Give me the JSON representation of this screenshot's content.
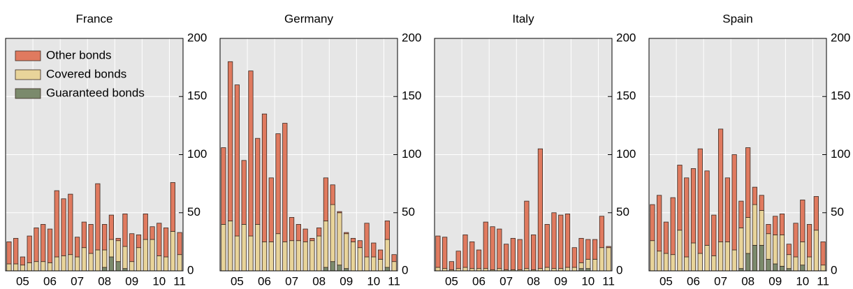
{
  "chart_data": [
    {
      "type": "bar",
      "stacked": true,
      "title": "France",
      "legend": "upper left",
      "categories": [
        null,
        null,
        "05",
        null,
        null,
        null,
        "06",
        null,
        null,
        null,
        "07",
        null,
        null,
        null,
        "08",
        null,
        null,
        null,
        "09",
        null,
        null,
        null,
        "10",
        null,
        null,
        "11"
      ],
      "series": [
        {
          "name": "Guaranteed bonds",
          "color": "#7b8a6c",
          "values": [
            0,
            0,
            0,
            0,
            0,
            0,
            0,
            0,
            0,
            0,
            0,
            0,
            0,
            0,
            3,
            12,
            8,
            2,
            0,
            0,
            0,
            0,
            0,
            0,
            0,
            0
          ]
        },
        {
          "name": "Covered bonds",
          "color": "#e8d49a",
          "values": [
            6,
            6,
            5,
            7,
            8,
            8,
            7,
            12,
            13,
            14,
            12,
            20,
            15,
            18,
            15,
            15,
            18,
            19,
            8,
            20,
            27,
            27,
            13,
            12,
            34,
            14
          ]
        },
        {
          "name": "Other bonds",
          "color": "#e07a5f",
          "values": [
            19,
            22,
            7,
            23,
            29,
            32,
            29,
            57,
            49,
            52,
            17,
            22,
            25,
            57,
            22,
            21,
            2,
            28,
            24,
            11,
            22,
            11,
            28,
            25,
            42,
            19
          ]
        }
      ],
      "ylim": [
        0,
        200
      ],
      "yticks": [
        0,
        50,
        100,
        150,
        200
      ],
      "grid": true
    },
    {
      "type": "bar",
      "stacked": true,
      "title": "Germany",
      "categories": [
        null,
        null,
        "05",
        null,
        null,
        null,
        "06",
        null,
        null,
        null,
        "07",
        null,
        null,
        null,
        "08",
        null,
        null,
        null,
        "09",
        null,
        null,
        null,
        "10",
        null,
        null,
        "11"
      ],
      "series": [
        {
          "color": "#7b8a6c",
          "values": [
            0,
            0,
            0,
            0,
            0,
            0,
            0,
            0,
            0,
            0,
            0,
            0,
            0,
            0,
            0,
            3,
            8,
            5,
            2,
            0,
            0,
            0,
            0,
            0,
            3,
            0
          ]
        },
        {
          "color": "#e8d49a",
          "values": [
            40,
            43,
            30,
            40,
            30,
            40,
            25,
            25,
            32,
            25,
            26,
            26,
            25,
            26,
            30,
            40,
            49,
            45,
            30,
            25,
            20,
            12,
            12,
            10,
            24,
            8
          ]
        },
        {
          "color": "#e07a5f",
          "values": [
            66,
            137,
            130,
            55,
            142,
            74,
            110,
            55,
            86,
            102,
            20,
            14,
            11,
            2,
            7,
            37,
            17,
            1,
            1,
            3,
            6,
            29,
            12,
            8,
            16,
            6
          ]
        }
      ],
      "ylim": [
        0,
        200
      ],
      "yticks": [
        0,
        50,
        100,
        150,
        200
      ],
      "grid": true
    },
    {
      "type": "bar",
      "stacked": true,
      "title": "Italy",
      "categories": [
        null,
        null,
        "05",
        null,
        null,
        null,
        "06",
        null,
        null,
        null,
        "07",
        null,
        null,
        null,
        "08",
        null,
        null,
        null,
        "09",
        null,
        null,
        null,
        "10",
        null,
        null,
        "11"
      ],
      "series": [
        {
          "color": "#7b8a6c",
          "values": [
            0,
            0,
            0,
            0,
            0,
            0,
            0,
            0,
            0,
            0,
            0,
            0,
            0,
            0,
            0,
            0,
            0,
            0,
            0,
            0,
            0,
            2,
            2,
            0,
            0,
            0
          ]
        },
        {
          "color": "#e8d49a",
          "values": [
            3,
            2,
            1,
            2,
            3,
            2,
            2,
            2,
            1,
            2,
            1,
            1,
            1,
            2,
            1,
            2,
            3,
            2,
            2,
            3,
            3,
            5,
            8,
            10,
            20,
            20
          ]
        },
        {
          "color": "#e07a5f",
          "values": [
            27,
            27,
            7,
            15,
            28,
            23,
            16,
            40,
            37,
            34,
            22,
            27,
            26,
            58,
            30,
            103,
            37,
            48,
            46,
            46,
            17,
            21,
            17,
            17,
            27,
            1
          ]
        }
      ],
      "ylim": [
        0,
        200
      ],
      "yticks": [
        0,
        50,
        100,
        150,
        200
      ],
      "grid": true
    },
    {
      "type": "bar",
      "stacked": true,
      "title": "Spain",
      "categories": [
        null,
        null,
        "05",
        null,
        null,
        null,
        "06",
        null,
        null,
        null,
        "07",
        null,
        null,
        null,
        "08",
        null,
        null,
        null,
        "09",
        null,
        null,
        null,
        "10",
        null,
        null,
        "11"
      ],
      "series": [
        {
          "color": "#7b8a6c",
          "values": [
            0,
            0,
            0,
            0,
            0,
            0,
            0,
            0,
            0,
            0,
            0,
            0,
            0,
            2,
            15,
            22,
            22,
            10,
            6,
            4,
            2,
            0,
            5,
            0,
            0,
            0
          ]
        },
        {
          "color": "#e8d49a",
          "values": [
            26,
            17,
            15,
            14,
            35,
            12,
            24,
            15,
            22,
            13,
            25,
            25,
            18,
            35,
            31,
            35,
            30,
            22,
            25,
            27,
            12,
            12,
            20,
            12,
            35,
            5
          ]
        },
        {
          "color": "#e07a5f",
          "values": [
            31,
            48,
            27,
            49,
            56,
            68,
            64,
            90,
            64,
            35,
            97,
            55,
            82,
            23,
            60,
            15,
            13,
            8,
            16,
            18,
            9,
            29,
            36,
            28,
            29,
            20
          ]
        }
      ],
      "ylim": [
        0,
        200
      ],
      "yticks": [
        0,
        50,
        100,
        150,
        200
      ],
      "grid": true
    }
  ]
}
